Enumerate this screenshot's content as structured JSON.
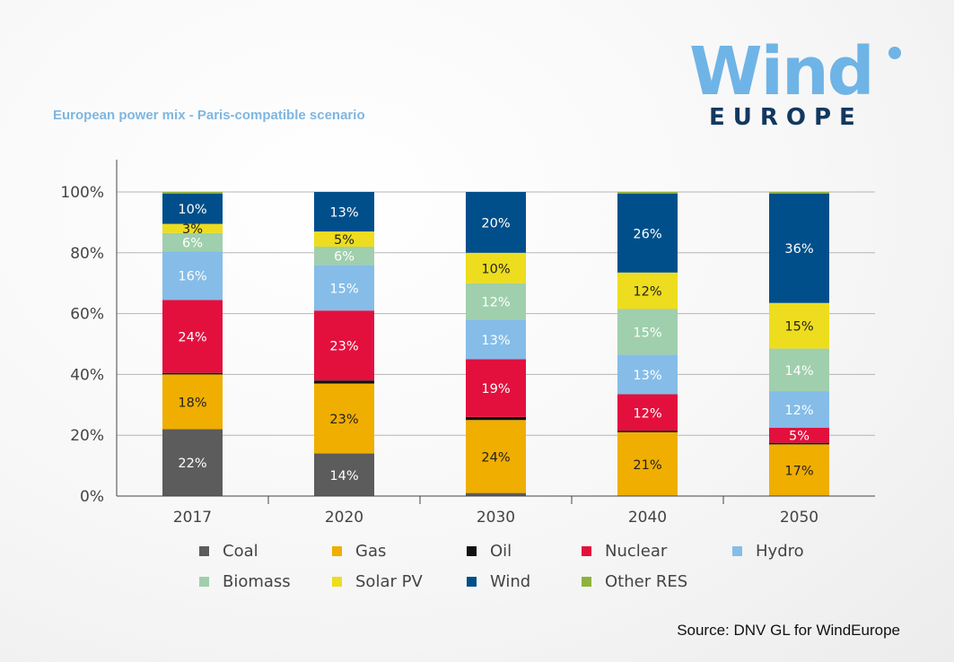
{
  "logo": {
    "word": "Wind",
    "sub": "EUROPE"
  },
  "subtitle": "European power mix - Paris-compatible scenario",
  "source": "Source: DNV GL for WindEurope",
  "chart_data": {
    "type": "bar",
    "stacked": true,
    "categories": [
      "2017",
      "2020",
      "2030",
      "2040",
      "2050"
    ],
    "ylim": [
      0,
      100
    ],
    "y_ticks": [
      "0%",
      "20%",
      "40%",
      "60%",
      "80%",
      "100%"
    ],
    "grid": true,
    "legend_position": "bottom",
    "series": [
      {
        "name": "Coal",
        "color": "#5c5c5c",
        "values": [
          22,
          14,
          1,
          0,
          0
        ],
        "labels": [
          "22%",
          "14%",
          "",
          "",
          ""
        ]
      },
      {
        "name": "Gas",
        "color": "#f0ae00",
        "values": [
          18,
          23,
          24,
          21,
          17
        ],
        "labels": [
          "18%",
          "23%",
          "24%",
          "21%",
          "17%"
        ]
      },
      {
        "name": "Oil",
        "color": "#111111",
        "values": [
          0.5,
          1,
          1,
          0.5,
          0.5
        ],
        "labels": [
          "",
          "",
          "",
          "",
          ""
        ]
      },
      {
        "name": "Nuclear",
        "color": "#e3103e",
        "values": [
          24,
          23,
          19,
          12,
          5
        ],
        "labels": [
          "24%",
          "23%",
          "19%",
          "12%",
          "5%"
        ]
      },
      {
        "name": "Hydro",
        "color": "#85bde8",
        "values": [
          16,
          15,
          13,
          13,
          12
        ],
        "labels": [
          "16%",
          "15%",
          "13%",
          "13%",
          "12%"
        ]
      },
      {
        "name": "Biomass",
        "color": "#9fcfac",
        "values": [
          6,
          6,
          12,
          15,
          14
        ],
        "labels": [
          "6%",
          "6%",
          "12%",
          "15%",
          "14%"
        ]
      },
      {
        "name": "Solar PV",
        "color": "#eddd1e",
        "values": [
          3,
          5,
          10,
          12,
          15
        ],
        "labels": [
          "3%",
          "5%",
          "10%",
          "12%",
          "15%"
        ]
      },
      {
        "name": "Wind",
        "color": "#004f8a",
        "values": [
          10,
          13,
          20,
          26,
          36
        ],
        "labels": [
          "10%",
          "13%",
          "20%",
          "26%",
          "36%"
        ]
      },
      {
        "name": "Other RES",
        "color": "#8db33a",
        "values": [
          0.5,
          0,
          0,
          0.5,
          0.5
        ],
        "labels": [
          "",
          "",
          "",
          "",
          ""
        ]
      }
    ]
  }
}
